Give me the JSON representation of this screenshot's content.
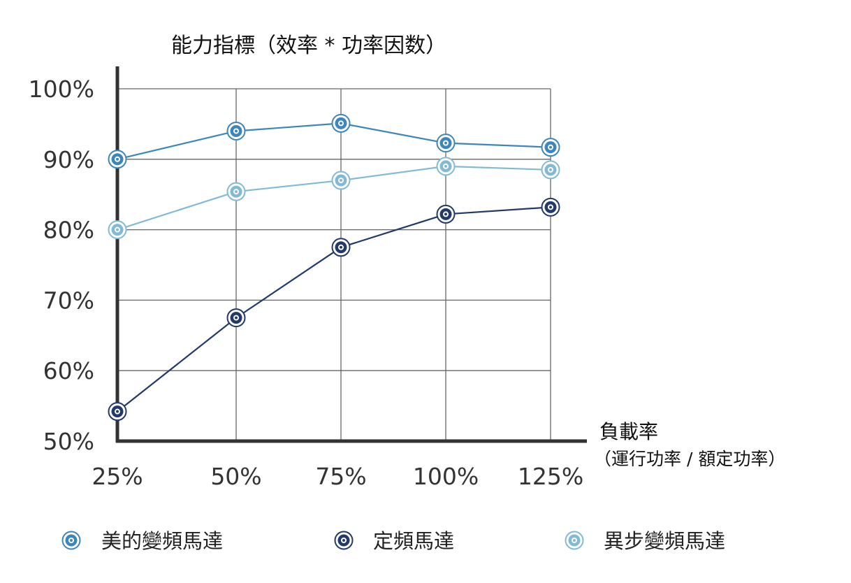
{
  "chart_data": {
    "type": "line",
    "title": "能力指標（效率 * 功率因数）",
    "xlabel": "負載率",
    "xlabel_sub": "（運行功率 / 額定功率）",
    "ylabel": "",
    "categories": [
      "25%",
      "50%",
      "75%",
      "100%",
      "125%"
    ],
    "y_ticks": [
      "50%",
      "60%",
      "70%",
      "80%",
      "90%",
      "100%"
    ],
    "ylim": [
      50,
      100
    ],
    "grid": true,
    "legend_position": "bottom",
    "series": [
      {
        "name": "美的變頻馬達",
        "color": "#3d86bb",
        "values": [
          90,
          94,
          95.1,
          92.3,
          91.7
        ]
      },
      {
        "name": "定頻馬達",
        "color": "#22396a",
        "values": [
          54.2,
          67.5,
          77.5,
          82.2,
          83.2
        ]
      },
      {
        "name": "異步變頻馬達",
        "color": "#82bad6",
        "values": [
          80,
          85.4,
          87,
          89,
          88.5
        ]
      }
    ]
  }
}
